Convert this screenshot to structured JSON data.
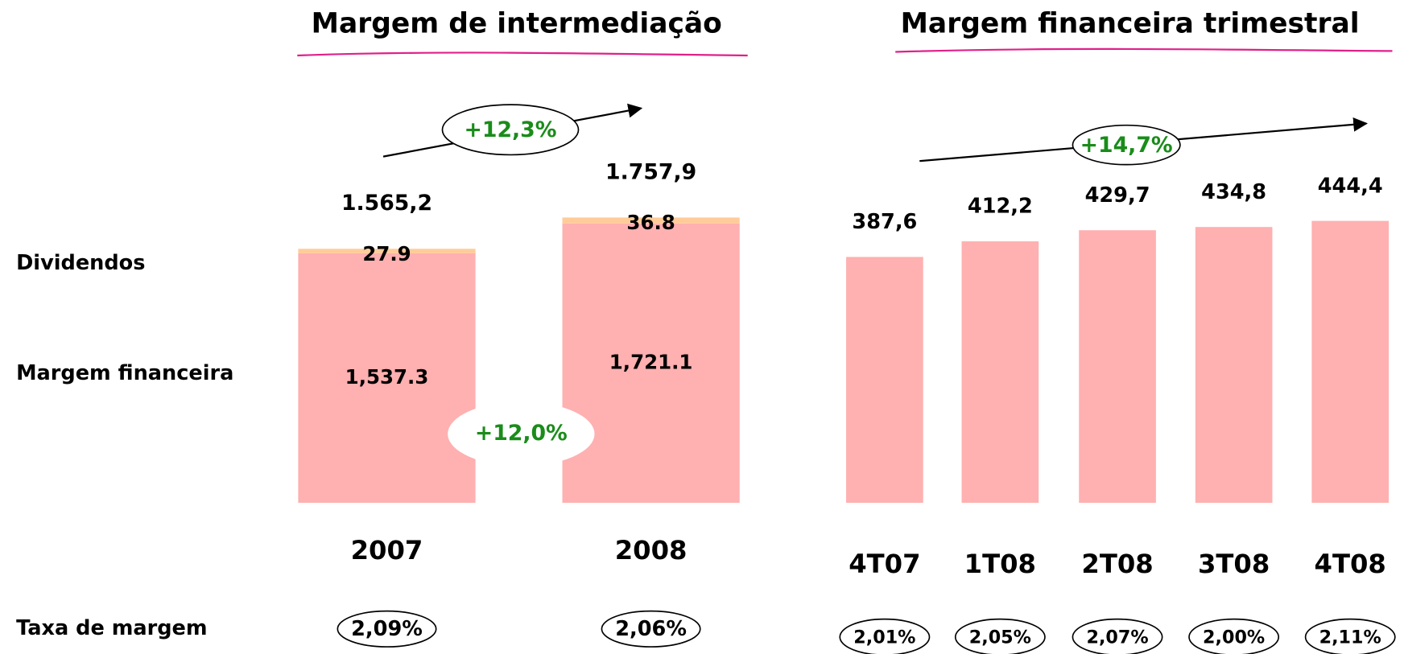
{
  "chart_data": [
    {
      "type": "stacked_bar",
      "title": "Margem de intermediação",
      "categories": [
        "2007",
        "2008"
      ],
      "series": [
        {
          "name": "Margem financeira",
          "color": "#ffb0b0",
          "values": [
            1537.3,
            1721.1
          ],
          "value_labels": [
            "1,537.3",
            "1,721.1"
          ]
        },
        {
          "name": "Dividendos",
          "color": "#ffcc99",
          "values": [
            27.9,
            36.8
          ],
          "value_labels": [
            "27.9",
            "36.8"
          ]
        }
      ],
      "totals": [
        1565.2,
        1757.9
      ],
      "total_labels": [
        "1.565,2",
        "1.757,9"
      ],
      "annotations": [
        "+12,3%",
        "+12,0%"
      ],
      "rate_title": "Taxa de margem",
      "rates": [
        "2,09%",
        "2,06%"
      ]
    },
    {
      "type": "bar",
      "title": "Margem financeira trimestral",
      "categories": [
        "4T07",
        "1T08",
        "2T08",
        "3T08",
        "4T08"
      ],
      "values": [
        387.6,
        412.2,
        429.7,
        434.8,
        444.4
      ],
      "value_labels": [
        "387,6",
        "412,2",
        "429,7",
        "434,8",
        "444,4"
      ],
      "color": "#ffb0b0",
      "annotations": [
        "+14,7%"
      ],
      "rates": [
        "2,01%",
        "2,05%",
        "2,07%",
        "2,00%",
        "2,11%"
      ]
    }
  ]
}
